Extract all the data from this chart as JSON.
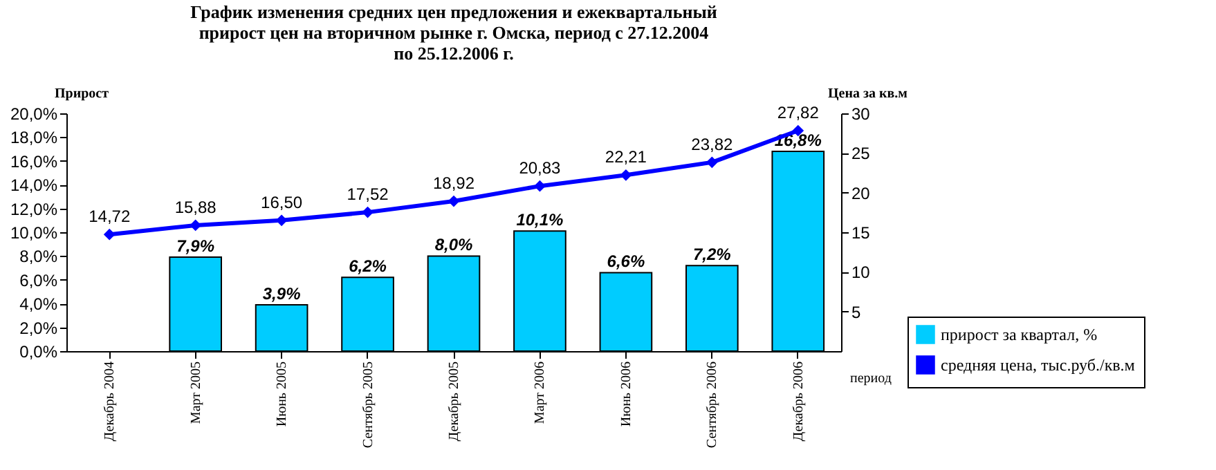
{
  "chart_data": {
    "type": "bar",
    "title": "График изменения средних цен предложения и ежеквартальный прирост цен на вторичном рынке г. Омска, период с 27.12.2004 по 25.12.2006 г.",
    "ylabel": "Прирост",
    "y2label": "Цена за кв.м",
    "xlabel": "период",
    "categories": [
      "Декабрь 2004",
      "Март 2005",
      "Июнь 2005",
      "Сентябрь 2005",
      "Декабрь 2005",
      "Март 2006",
      "Июнь 2006",
      "Сентябрь 2006",
      "Декабрь 2006"
    ],
    "series": [
      {
        "name": "прирост за квартал, %",
        "color": "#00ccff",
        "values": [
          null,
          7.9,
          3.9,
          6.2,
          8.0,
          10.1,
          6.6,
          7.2,
          16.8
        ],
        "value_labels": [
          null,
          "7,9%",
          "3,9%",
          "6,2%",
          "8,0%",
          "10,1%",
          "6,6%",
          "7,2%",
          "16,8%"
        ]
      },
      {
        "name": "средняя цена, тыс.руб./кв.м",
        "type": "line",
        "axis": "y2",
        "color": "#0000ff",
        "marker": "diamond",
        "values": [
          14.72,
          15.88,
          16.5,
          17.52,
          18.92,
          20.83,
          22.21,
          23.82,
          27.82
        ],
        "value_labels": [
          "14,72",
          "15,88",
          "16,50",
          "17,52",
          "18,92",
          "20,83",
          "22,21",
          "23,82",
          "27,82"
        ]
      }
    ],
    "ylim": [
      0,
      20
    ],
    "yticks": [
      {
        "value": 0,
        "label": "0,0%"
      },
      {
        "value": 2,
        "label": "2,0%"
      },
      {
        "value": 4,
        "label": "4,0%"
      },
      {
        "value": 6,
        "label": "6,0%"
      },
      {
        "value": 8,
        "label": "8,0%"
      },
      {
        "value": 10,
        "label": "10,0%"
      },
      {
        "value": 12,
        "label": "12,0%"
      },
      {
        "value": 14,
        "label": "14,0%"
      },
      {
        "value": 16,
        "label": "16,0%"
      },
      {
        "value": 18,
        "label": "18,0%"
      },
      {
        "value": 20,
        "label": "20,0%"
      }
    ],
    "y2lim": [
      0,
      30
    ],
    "y2ticks": [
      5,
      10,
      15,
      20,
      25,
      30
    ],
    "grid": false,
    "legend": "bottom right"
  }
}
